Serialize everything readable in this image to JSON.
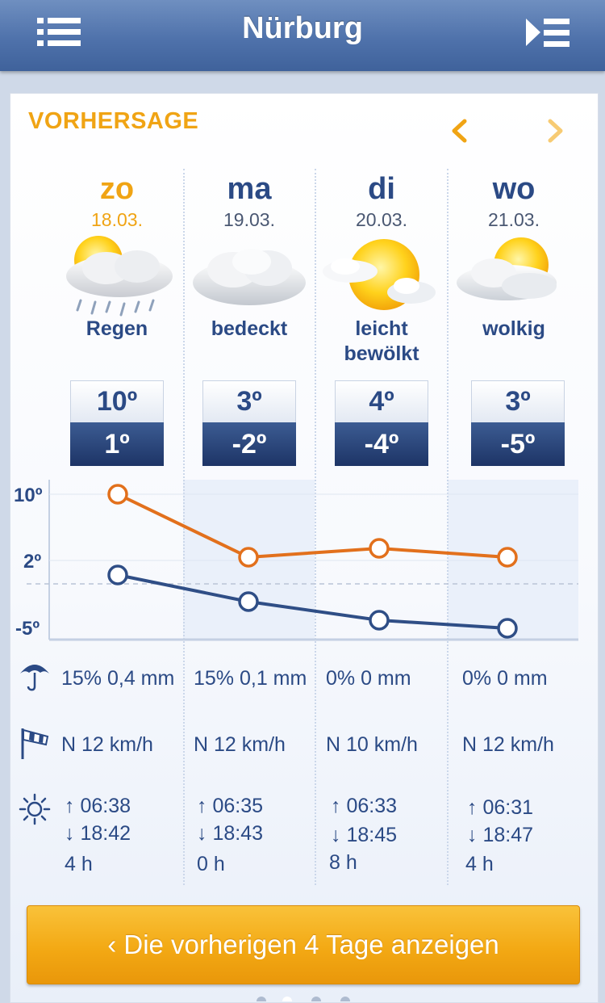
{
  "header": {
    "title": "Nürburg",
    "menu_icon": "list-menu-icon",
    "next_icon": "play-list-icon"
  },
  "forecast": {
    "section_title": "VORHERSAGE",
    "prev_icon": "chevron-left-icon",
    "next_icon": "chevron-right-icon",
    "accent_color": "#f0a414",
    "days": [
      {
        "dow": "zo",
        "date": "18.03.",
        "condition": "Regen",
        "icon": "sun-cloud-rain-icon",
        "high": "10º",
        "low": "1º",
        "precip": "15% 0,4 mm",
        "wind": "N 12 km/h",
        "sunrise": "↑  06:38",
        "sunset": "↓  18:42",
        "sun_hours": "4 h",
        "today": true
      },
      {
        "dow": "ma",
        "date": "19.03.",
        "condition": "bedeckt",
        "icon": "overcast-cloud-icon",
        "high": "3º",
        "low": "-2º",
        "precip": "15% 0,1 mm",
        "wind": "N 12 km/h",
        "sunrise": "↑  06:35",
        "sunset": "↓  18:43",
        "sun_hours": "0 h"
      },
      {
        "dow": "di",
        "date": "20.03.",
        "condition": "leicht bewölkt",
        "icon": "sun-small-cloud-icon",
        "high": "4º",
        "low": "-4º",
        "precip": "0% 0 mm",
        "wind": "N 10 km/h",
        "sunrise": "↑  06:33",
        "sunset": "↓  18:45",
        "sun_hours": "8 h"
      },
      {
        "dow": "wo",
        "date": "21.03.",
        "condition": "wolkig",
        "icon": "sun-cloud-icon",
        "high": "3º",
        "low": "-5º",
        "precip": "0% 0 mm",
        "wind": "N 12 km/h",
        "sunrise": "↑  06:31",
        "sunset": "↓  18:47",
        "sun_hours": "4 h"
      }
    ],
    "chart_data": {
      "type": "line",
      "categories": [
        "zo",
        "ma",
        "di",
        "wo"
      ],
      "series": [
        {
          "values": [
            10,
            3,
            4,
            3
          ],
          "color": "#e2701c"
        },
        {
          "values": [
            1,
            -2,
            -4,
            -5
          ],
          "color": "#2f4e86"
        }
      ],
      "y_ticks": [
        "10º",
        "2º",
        "-5º"
      ],
      "ylim": [
        -5,
        10
      ],
      "zero_line": 0
    },
    "rows": {
      "precip_icon": "umbrella-icon",
      "wind_icon": "windsock-icon",
      "sun_icon": "sun-icon"
    },
    "prev_button_label": "‹ Die vorherigen 4 Tage anzeigen"
  }
}
